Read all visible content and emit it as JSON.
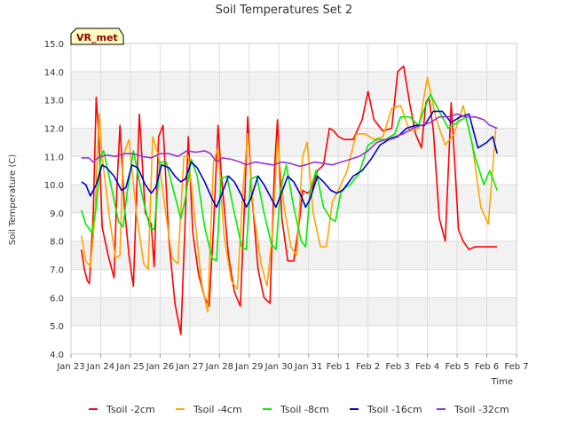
{
  "chart_data": {
    "type": "line",
    "title": "Soil Temperatures Set 2",
    "xlabel": "Time",
    "ylabel": "Soil Temperature (C)",
    "badge": "VR_met",
    "xlim": [
      0,
      15
    ],
    "ylim": [
      4.0,
      15.0
    ],
    "x_ticks": [
      {
        "v": 0,
        "label": "Jan 23"
      },
      {
        "v": 1,
        "label": "Jan 24"
      },
      {
        "v": 2,
        "label": "Jan 25"
      },
      {
        "v": 3,
        "label": "Jan 26"
      },
      {
        "v": 4,
        "label": "Jan 27"
      },
      {
        "v": 5,
        "label": "Jan 28"
      },
      {
        "v": 6,
        "label": "Jan 29"
      },
      {
        "v": 7,
        "label": "Jan 30"
      },
      {
        "v": 8,
        "label": "Jan 31"
      },
      {
        "v": 9,
        "label": "Feb 1"
      },
      {
        "v": 10,
        "label": "Feb 2"
      },
      {
        "v": 11,
        "label": "Feb 3"
      },
      {
        "v": 12,
        "label": "Feb 4"
      },
      {
        "v": 13,
        "label": "Feb 5"
      },
      {
        "v": 14,
        "label": "Feb 6"
      },
      {
        "v": 15,
        "label": "Feb 7"
      }
    ],
    "y_ticks": [
      {
        "v": 4.0,
        "label": "4.0"
      },
      {
        "v": 5.0,
        "label": "5.0"
      },
      {
        "v": 6.0,
        "label": "6.0"
      },
      {
        "v": 7.0,
        "label": "7.0"
      },
      {
        "v": 8.0,
        "label": "8.0"
      },
      {
        "v": 9.0,
        "label": "9.0"
      },
      {
        "v": 10.0,
        "label": "10.0"
      },
      {
        "v": 11.0,
        "label": "11.0"
      },
      {
        "v": 12.0,
        "label": "12.0"
      },
      {
        "v": 13.0,
        "label": "13.0"
      },
      {
        "v": 14.0,
        "label": "14.0"
      },
      {
        "v": 15.0,
        "label": "15.0"
      }
    ],
    "grid": true,
    "legend_position": "bottom",
    "series": [
      {
        "name": "Tsoil -2cm",
        "color": "#ff0000",
        "x": [
          0.35,
          0.45,
          0.55,
          0.62,
          0.75,
          0.85,
          0.95,
          1.05,
          1.25,
          1.45,
          1.55,
          1.65,
          1.8,
          1.95,
          2.1,
          2.3,
          2.5,
          2.7,
          2.8,
          2.95,
          3.1,
          3.3,
          3.5,
          3.7,
          3.8,
          3.95,
          4.1,
          4.3,
          4.5,
          4.65,
          4.8,
          4.95,
          5.05,
          5.3,
          5.5,
          5.7,
          5.85,
          5.95,
          6.1,
          6.3,
          6.5,
          6.7,
          6.85,
          6.95,
          7.1,
          7.3,
          7.5,
          7.7,
          7.8,
          7.95,
          8.1,
          8.3,
          8.5,
          8.7,
          8.85,
          9.0,
          9.2,
          9.5,
          9.8,
          10.0,
          10.2,
          10.5,
          10.8,
          11.0,
          11.2,
          11.4,
          11.6,
          11.8,
          11.95,
          12.05,
          12.2,
          12.4,
          12.6,
          12.8,
          12.95,
          13.05,
          13.2,
          13.4,
          13.6,
          13.8,
          13.95,
          14.05,
          14.2,
          14.35
        ],
        "values": [
          7.7,
          7.0,
          6.6,
          6.5,
          9.0,
          13.1,
          11.5,
          8.5,
          7.5,
          6.7,
          10.0,
          12.1,
          9.2,
          7.5,
          6.4,
          12.5,
          9.0,
          8.6,
          7.1,
          11.7,
          12.1,
          8.0,
          5.8,
          4.7,
          7.5,
          11.7,
          8.3,
          6.8,
          6.0,
          5.7,
          8.5,
          12.1,
          10.5,
          7.5,
          6.2,
          5.7,
          9.5,
          12.4,
          9.5,
          7.0,
          6.0,
          5.8,
          10.5,
          12.3,
          8.8,
          7.3,
          7.3,
          8.8,
          9.8,
          9.7,
          9.8,
          10.5,
          10.7,
          12.0,
          11.9,
          11.7,
          11.6,
          11.6,
          12.3,
          13.3,
          12.3,
          11.9,
          12.0,
          14.0,
          14.2,
          12.9,
          11.8,
          11.3,
          12.9,
          13.1,
          11.9,
          8.8,
          8.0,
          12.9,
          10.2,
          8.4,
          8.0,
          7.7,
          7.8,
          7.8,
          7.8,
          7.8,
          7.8,
          7.8
        ]
      },
      {
        "name": "Tsoil -4cm",
        "color": "#ffa500",
        "x": [
          0.35,
          0.5,
          0.65,
          0.8,
          0.95,
          1.05,
          1.3,
          1.5,
          1.65,
          1.75,
          1.95,
          2.2,
          2.45,
          2.6,
          2.75,
          2.95,
          3.15,
          3.4,
          3.6,
          3.8,
          3.95,
          4.15,
          4.4,
          4.6,
          4.8,
          4.95,
          5.15,
          5.4,
          5.6,
          5.8,
          5.95,
          6.15,
          6.4,
          6.6,
          6.8,
          6.95,
          7.15,
          7.4,
          7.6,
          7.8,
          7.95,
          8.15,
          8.4,
          8.6,
          8.8,
          9.0,
          9.3,
          9.6,
          9.9,
          10.2,
          10.5,
          10.8,
          11.1,
          11.4,
          11.7,
          12.0,
          12.3,
          12.6,
          12.9,
          13.2,
          13.5,
          13.8,
          14.05,
          14.3
        ],
        "values": [
          8.2,
          7.3,
          7.1,
          8.8,
          12.5,
          11.0,
          8.8,
          7.4,
          7.5,
          11.0,
          11.6,
          9.0,
          7.2,
          7.0,
          11.7,
          11.0,
          9.3,
          7.4,
          7.2,
          11.0,
          11.0,
          9.0,
          6.5,
          5.5,
          10.8,
          11.3,
          8.2,
          6.6,
          6.3,
          10.0,
          11.8,
          9.0,
          7.2,
          6.4,
          8.5,
          11.6,
          9.4,
          7.8,
          7.5,
          11.0,
          11.5,
          9.0,
          7.8,
          7.8,
          9.4,
          9.8,
          10.5,
          11.8,
          11.8,
          11.6,
          11.7,
          12.7,
          12.8,
          11.9,
          12.0,
          13.8,
          12.3,
          11.4,
          11.8,
          12.8,
          11.5,
          9.2,
          8.6,
          12.0
        ]
      },
      {
        "name": "Tsoil -8cm",
        "color": "#00ee00",
        "x": [
          0.35,
          0.5,
          0.7,
          0.85,
          1.0,
          1.1,
          1.4,
          1.6,
          1.75,
          1.9,
          2.1,
          2.4,
          2.65,
          2.8,
          3.0,
          3.2,
          3.45,
          3.7,
          3.85,
          4.05,
          4.25,
          4.5,
          4.75,
          4.9,
          5.05,
          5.25,
          5.5,
          5.75,
          5.9,
          6.05,
          6.25,
          6.5,
          6.75,
          6.9,
          7.05,
          7.25,
          7.5,
          7.75,
          7.9,
          8.05,
          8.25,
          8.5,
          8.75,
          8.9,
          9.1,
          9.4,
          9.7,
          10.0,
          10.3,
          10.6,
          10.9,
          11.1,
          11.4,
          11.7,
          11.9,
          12.1,
          12.4,
          12.7,
          13.0,
          13.3,
          13.6,
          13.9,
          14.1,
          14.35
        ],
        "values": [
          9.1,
          8.6,
          8.3,
          9.2,
          11.0,
          11.2,
          9.7,
          8.7,
          8.5,
          9.8,
          11.2,
          9.6,
          8.5,
          8.4,
          10.8,
          10.8,
          9.8,
          8.8,
          9.5,
          10.9,
          10.3,
          8.5,
          7.4,
          7.3,
          10.2,
          10.3,
          9.0,
          7.8,
          7.7,
          10.2,
          10.3,
          9.0,
          7.9,
          7.7,
          9.8,
          10.7,
          9.2,
          8.0,
          7.8,
          9.8,
          10.5,
          9.2,
          8.8,
          8.7,
          9.8,
          10.0,
          10.4,
          11.4,
          11.6,
          11.6,
          11.8,
          12.4,
          12.4,
          12.1,
          12.7,
          13.2,
          12.6,
          12.0,
          12.2,
          12.4,
          11.0,
          10.0,
          10.5,
          9.8
        ]
      },
      {
        "name": "Tsoil -16cm",
        "color": "#0000cc",
        "x": [
          0.35,
          0.5,
          0.65,
          0.85,
          1.05,
          1.2,
          1.45,
          1.7,
          1.85,
          2.05,
          2.25,
          2.5,
          2.7,
          2.85,
          3.05,
          3.3,
          3.5,
          3.7,
          3.85,
          4.05,
          4.25,
          4.5,
          4.75,
          4.9,
          5.05,
          5.3,
          5.5,
          5.75,
          5.9,
          6.05,
          6.3,
          6.5,
          6.75,
          6.9,
          7.05,
          7.3,
          7.5,
          7.75,
          7.9,
          8.05,
          8.3,
          8.5,
          8.75,
          8.95,
          9.15,
          9.5,
          9.8,
          10.1,
          10.4,
          10.7,
          11.0,
          11.3,
          11.6,
          11.9,
          12.2,
          12.5,
          12.8,
          13.1,
          13.4,
          13.7,
          14.0,
          14.2,
          14.35
        ],
        "values": [
          10.1,
          10.0,
          9.6,
          10.0,
          10.7,
          10.6,
          10.3,
          9.8,
          9.9,
          10.7,
          10.6,
          10.0,
          9.7,
          9.9,
          10.7,
          10.6,
          10.3,
          10.1,
          10.2,
          10.8,
          10.6,
          10.1,
          9.5,
          9.2,
          9.6,
          10.3,
          10.1,
          9.6,
          9.2,
          9.5,
          10.3,
          10.0,
          9.5,
          9.2,
          9.6,
          10.3,
          10.1,
          9.6,
          9.2,
          9.5,
          10.3,
          10.1,
          9.8,
          9.7,
          9.8,
          10.3,
          10.5,
          10.9,
          11.4,
          11.6,
          11.7,
          12.0,
          12.1,
          12.1,
          12.6,
          12.6,
          12.2,
          12.4,
          12.5,
          11.3,
          11.5,
          11.7,
          11.1
        ]
      },
      {
        "name": "Tsoil -32cm",
        "color": "#9933cc",
        "x": [
          0.35,
          0.6,
          0.75,
          0.9,
          1.2,
          1.5,
          1.8,
          2.1,
          2.4,
          2.7,
          3.0,
          3.3,
          3.6,
          3.9,
          4.2,
          4.5,
          4.7,
          4.9,
          5.1,
          5.4,
          5.7,
          5.9,
          6.2,
          6.5,
          6.8,
          7.1,
          7.4,
          7.7,
          7.9,
          8.2,
          8.5,
          8.8,
          9.1,
          9.4,
          9.7,
          10.0,
          10.3,
          10.6,
          10.9,
          11.2,
          11.5,
          11.8,
          12.1,
          12.4,
          12.7,
          13.0,
          13.3,
          13.6,
          13.9,
          14.1,
          14.35
        ],
        "values": [
          10.95,
          10.95,
          10.8,
          10.95,
          11.05,
          11.0,
          11.1,
          11.1,
          11.0,
          10.95,
          11.1,
          11.1,
          11.0,
          11.2,
          11.15,
          11.2,
          11.1,
          10.8,
          10.95,
          10.9,
          10.8,
          10.7,
          10.8,
          10.75,
          10.7,
          10.8,
          10.75,
          10.65,
          10.7,
          10.8,
          10.75,
          10.7,
          10.8,
          10.9,
          11.0,
          11.2,
          11.5,
          11.6,
          11.7,
          11.8,
          12.0,
          12.1,
          12.2,
          12.4,
          12.4,
          12.5,
          12.4,
          12.4,
          12.3,
          12.1,
          12.0
        ]
      }
    ]
  }
}
